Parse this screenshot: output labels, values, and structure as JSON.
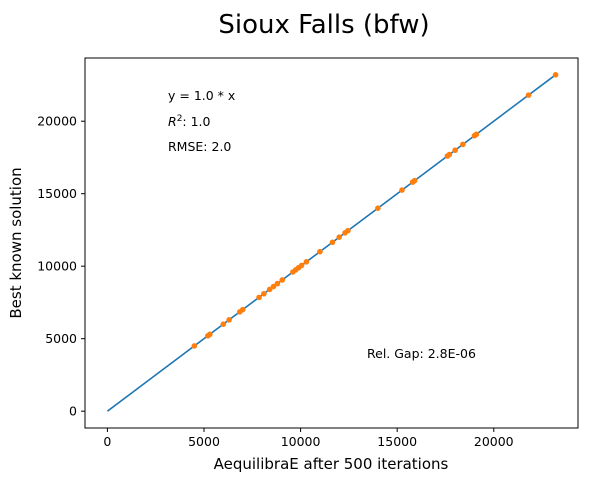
{
  "chart_data": {
    "type": "scatter",
    "title": "Sioux Falls (bfw)",
    "xlabel": "AequilibraE after 500 iterations",
    "ylabel": "Best known solution",
    "xlim": [
      -1160,
      24360
    ],
    "ylim": [
      -1160,
      24360
    ],
    "xticks": [
      0,
      5000,
      10000,
      15000,
      20000
    ],
    "yticks": [
      0,
      5000,
      10000,
      15000,
      20000
    ],
    "tick_labels": [
      "0",
      "5000",
      "10000",
      "15000",
      "20000"
    ],
    "grid": false,
    "annotations": {
      "equation": "y = 1.0 * x",
      "r2_prefix": "R",
      "r2_sup": "2",
      "r2_suffix": ":  1.0",
      "rmse": "RMSE: 2.0",
      "rel_gap": "Rel. Gap: 2.8E-06"
    },
    "fit_line": {
      "x": [
        0,
        23200
      ],
      "y": [
        0,
        23200
      ],
      "color": "#1f77b4"
    },
    "series": [
      {
        "color": "#ff7f0e",
        "points": [
          [
            4500,
            4500
          ],
          [
            5200,
            5200
          ],
          [
            5300,
            5300
          ],
          [
            6000,
            6000
          ],
          [
            6300,
            6300
          ],
          [
            6850,
            6850
          ],
          [
            7000,
            7000
          ],
          [
            7850,
            7850
          ],
          [
            8100,
            8100
          ],
          [
            8400,
            8400
          ],
          [
            8600,
            8600
          ],
          [
            8800,
            8800
          ],
          [
            9050,
            9050
          ],
          [
            9600,
            9600
          ],
          [
            9750,
            9750
          ],
          [
            9900,
            9900
          ],
          [
            10050,
            10050
          ],
          [
            10300,
            10300
          ],
          [
            11000,
            11000
          ],
          [
            11650,
            11650
          ],
          [
            12000,
            12000
          ],
          [
            12300,
            12300
          ],
          [
            12450,
            12450
          ],
          [
            14000,
            14000
          ],
          [
            15250,
            15250
          ],
          [
            15800,
            15800
          ],
          [
            15900,
            15900
          ],
          [
            17600,
            17600
          ],
          [
            17700,
            17700
          ],
          [
            18000,
            18000
          ],
          [
            18400,
            18400
          ],
          [
            19000,
            19000
          ],
          [
            19100,
            19100
          ],
          [
            21800,
            21800
          ],
          [
            23200,
            23200
          ]
        ]
      }
    ]
  }
}
